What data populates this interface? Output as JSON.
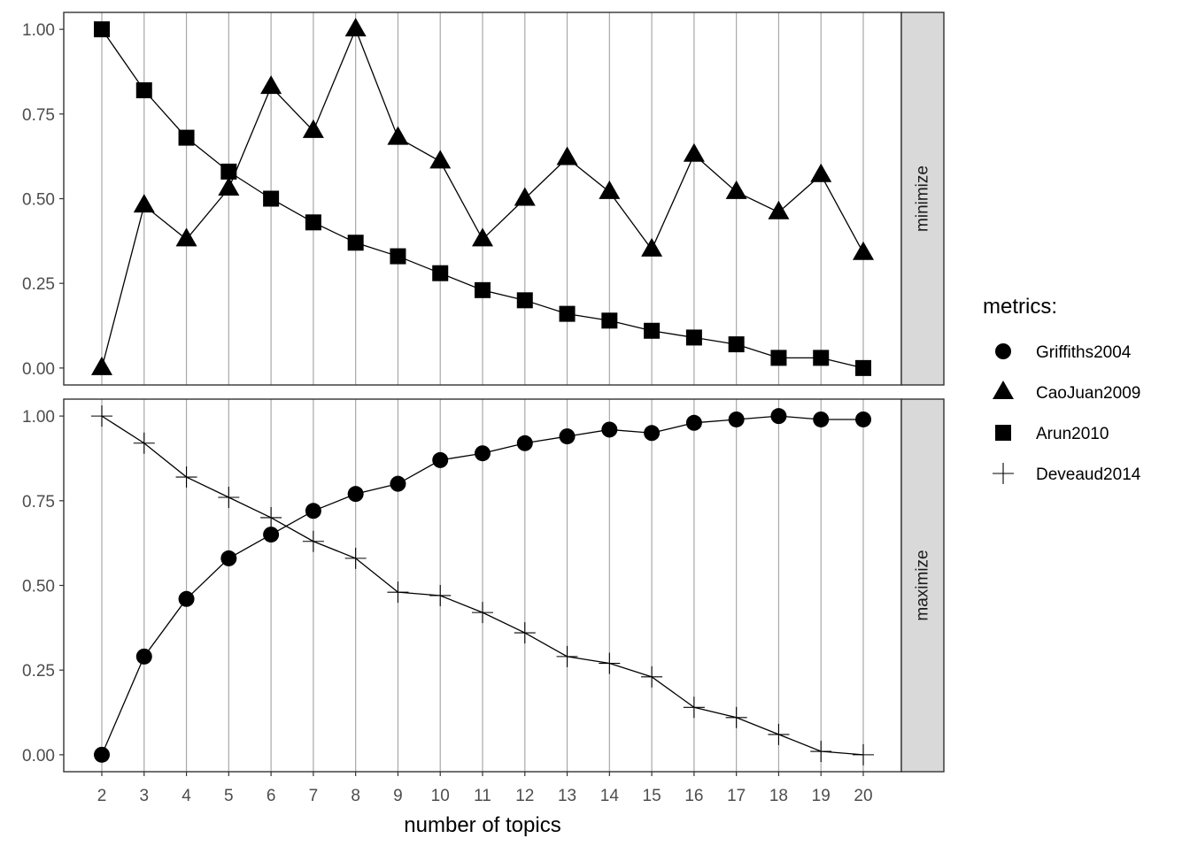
{
  "chart_data": {
    "type": "line",
    "xlabel": "number of topics",
    "ylabel": "",
    "x": [
      2,
      3,
      4,
      5,
      6,
      7,
      8,
      9,
      10,
      11,
      12,
      13,
      14,
      15,
      16,
      17,
      18,
      19,
      20
    ],
    "x_ticks": [
      "2",
      "3",
      "4",
      "5",
      "6",
      "7",
      "8",
      "9",
      "10",
      "11",
      "12",
      "13",
      "14",
      "15",
      "16",
      "17",
      "18",
      "19",
      "20"
    ],
    "ylim": [
      -0.05,
      1.05
    ],
    "y_ticks": [
      "0.00",
      "0.25",
      "0.50",
      "0.75",
      "1.00"
    ],
    "y_tick_values": [
      0,
      0.25,
      0.5,
      0.75,
      1.0
    ],
    "grid": "vertical major lines",
    "legend": {
      "title": "metrics:",
      "placement": "right",
      "entries": [
        {
          "label": "Griffiths2004",
          "shape": "circle"
        },
        {
          "label": "CaoJuan2009",
          "shape": "triangle"
        },
        {
          "label": "Arun2010",
          "shape": "square"
        },
        {
          "label": "Deveaud2014",
          "shape": "cross"
        }
      ]
    },
    "panels": [
      {
        "label": "minimize",
        "series": [
          {
            "name": "CaoJuan2009",
            "shape": "triangle",
            "values": [
              0.0,
              0.48,
              0.38,
              0.53,
              0.83,
              0.7,
              1.0,
              0.68,
              0.61,
              0.38,
              0.5,
              0.62,
              0.52,
              0.35,
              0.63,
              0.52,
              0.46,
              0.57,
              0.34
            ]
          },
          {
            "name": "Arun2010",
            "shape": "square",
            "values": [
              1.0,
              0.82,
              0.68,
              0.58,
              0.5,
              0.43,
              0.37,
              0.33,
              0.28,
              0.23,
              0.2,
              0.16,
              0.14,
              0.11,
              0.09,
              0.07,
              0.03,
              0.03,
              0.0
            ]
          }
        ]
      },
      {
        "label": "maximize",
        "series": [
          {
            "name": "Griffiths2004",
            "shape": "circle",
            "values": [
              0.0,
              0.29,
              0.46,
              0.58,
              0.65,
              0.72,
              0.77,
              0.8,
              0.87,
              0.89,
              0.92,
              0.94,
              0.96,
              0.95,
              0.98,
              0.99,
              1.0,
              0.99,
              0.99
            ]
          },
          {
            "name": "Deveaud2014",
            "shape": "cross",
            "values": [
              1.0,
              0.92,
              0.82,
              0.76,
              0.7,
              0.63,
              0.58,
              0.48,
              0.47,
              0.42,
              0.36,
              0.29,
              0.27,
              0.23,
              0.14,
              0.11,
              0.06,
              0.01,
              0.0
            ]
          }
        ]
      }
    ]
  }
}
